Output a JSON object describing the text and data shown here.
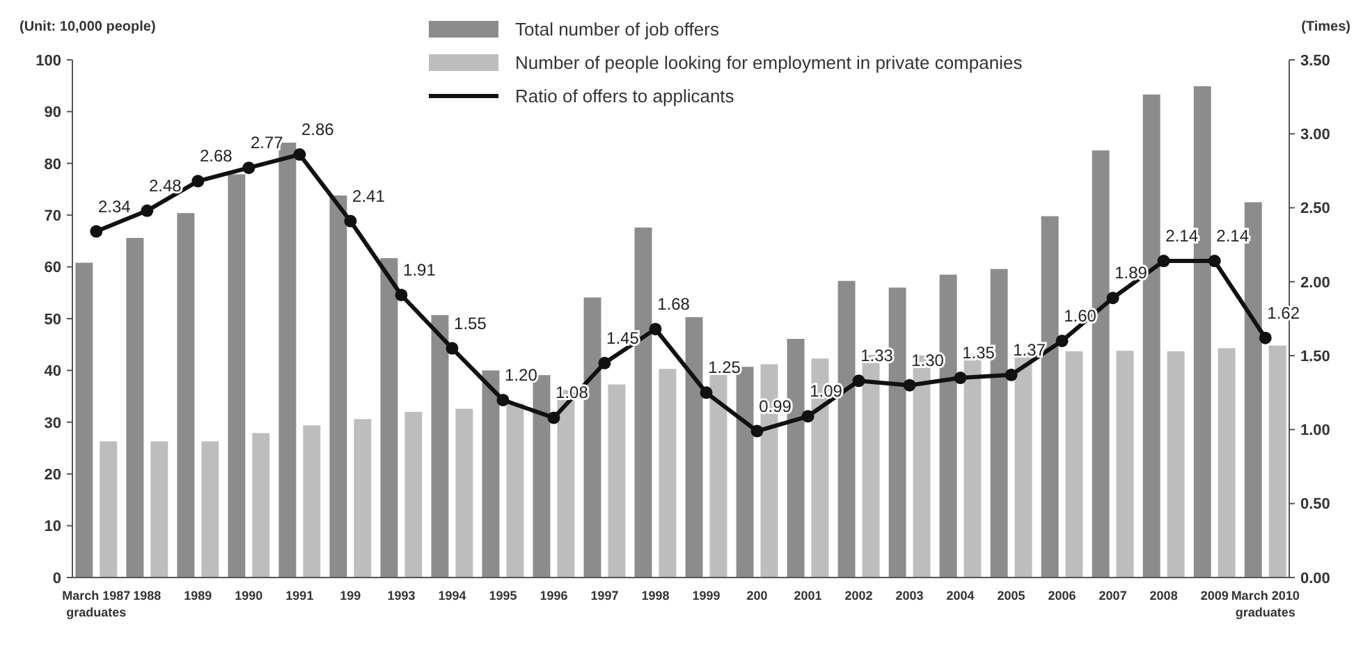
{
  "chart_data": {
    "type": "bar",
    "ylabel": "(Unit: 10,000 people)",
    "y2label": "(Times)",
    "categories": [
      "March 1987 graduates",
      "1988",
      "1989",
      "1990",
      "1991",
      "199",
      "1993",
      "1994",
      "1995",
      "1996",
      "1997",
      "1998",
      "1999",
      "200",
      "2001",
      "2002",
      "2003",
      "2004",
      "2005",
      "2006",
      "2007",
      "2008",
      "2009",
      "March 2010 graduates"
    ],
    "series": [
      {
        "name": "Total number of job offers",
        "color": "#8c8c8c",
        "values": [
          60.8,
          65.6,
          70.4,
          77.9,
          84.0,
          73.8,
          61.7,
          50.7,
          40.0,
          39.1,
          54.1,
          67.6,
          50.3,
          40.7,
          46.1,
          57.3,
          56.0,
          58.5,
          59.6,
          69.8,
          82.5,
          93.3,
          94.9,
          72.5
        ]
      },
      {
        "name": "Number of people looking for employment in private companies",
        "color": "#bdbdbd",
        "values": [
          26.3,
          26.3,
          26.3,
          27.9,
          29.4,
          30.6,
          32.0,
          32.6,
          33.6,
          36.2,
          37.3,
          40.3,
          40.3,
          41.2,
          42.3,
          43.0,
          42.9,
          43.2,
          43.5,
          43.7,
          43.8,
          43.7,
          44.3,
          44.8
        ]
      },
      {
        "name": "Ratio of offers to applicants",
        "type": "line",
        "axis": "y2",
        "color": "#111111",
        "value_labels": [
          "2.34",
          "2.48",
          "2.68",
          "2.77",
          "2.86",
          "2.41",
          "1.91",
          "1.55",
          "1.20",
          "1.08",
          "1.45",
          "1.68",
          "1.25",
          "0.99",
          "1.09",
          "1.33",
          "1.30",
          "1.35",
          "1.37",
          "1.60",
          "1.89",
          "2.14",
          "2.14",
          "1.62"
        ],
        "values": [
          2.34,
          2.48,
          2.68,
          2.77,
          2.86,
          2.41,
          1.91,
          1.55,
          1.2,
          1.08,
          1.45,
          1.68,
          1.25,
          0.99,
          1.09,
          1.33,
          1.3,
          1.35,
          1.37,
          1.6,
          1.89,
          2.14,
          2.14,
          1.62
        ]
      }
    ],
    "ylim": [
      0,
      100
    ],
    "yticks": [
      0,
      10,
      20,
      30,
      40,
      50,
      60,
      70,
      80,
      90,
      100
    ],
    "y2lim": [
      0,
      3.5
    ],
    "y2ticks": [
      {
        "value": 0,
        "label": "0.00"
      },
      {
        "value": 0.5,
        "label": "0.50"
      },
      {
        "value": 1,
        "label": "1.00"
      },
      {
        "value": 1.5,
        "label": "1.50"
      },
      {
        "value": 2,
        "label": "2.00"
      },
      {
        "value": 2.5,
        "label": "2.50"
      },
      {
        "value": 3,
        "label": "3.00"
      },
      {
        "value": 3.5,
        "label": "3.50"
      }
    ],
    "grid": false,
    "legend": "top",
    "marker": "circle",
    "line_style": "solid"
  }
}
